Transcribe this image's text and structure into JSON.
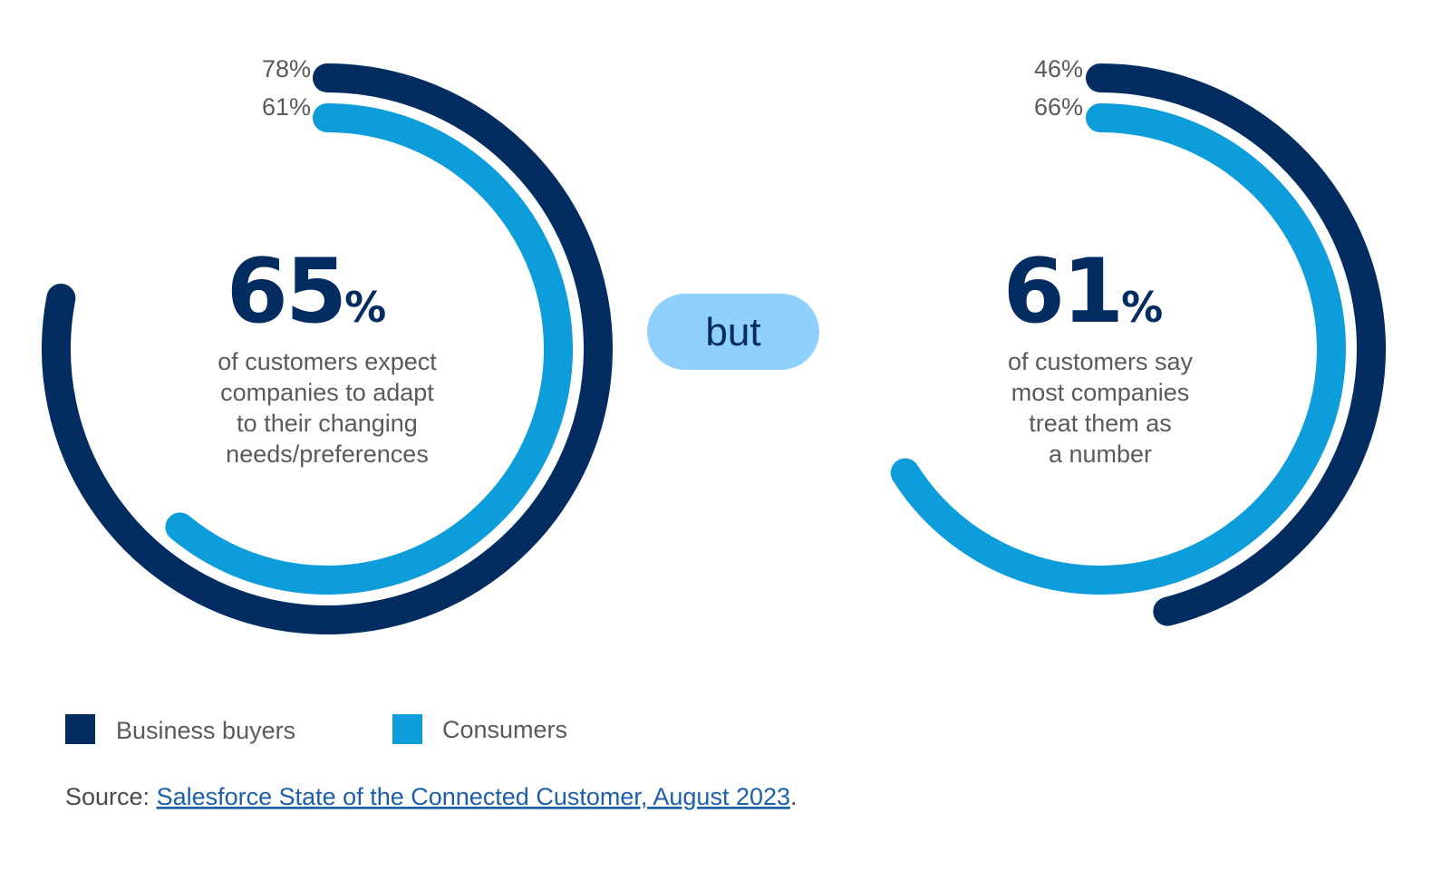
{
  "colors": {
    "business": "#032d60",
    "consumer": "#0d9dda",
    "pill": "#90d0fe",
    "text": "#5a5a5a",
    "link": "#1b5faa"
  },
  "chart_data": [
    {
      "type": "radial-bar",
      "headline_number": "65",
      "headline_unit": "%",
      "caption_lines": [
        "of customers expect",
        "companies to adapt",
        "to their changing",
        "needs/preferences"
      ],
      "series": [
        {
          "name": "Business buyers",
          "value": 78,
          "label": "78%"
        },
        {
          "name": "Consumers",
          "value": 61,
          "label": "61%"
        }
      ],
      "max": 100
    },
    {
      "type": "radial-bar",
      "headline_number": "61",
      "headline_unit": "%",
      "caption_lines": [
        "of customers say",
        "most companies",
        "treat them as",
        "a number"
      ],
      "series": [
        {
          "name": "Business buyers",
          "value": 46,
          "label": "46%"
        },
        {
          "name": "Consumers",
          "value": 66,
          "label": "66%"
        }
      ],
      "max": 100
    }
  ],
  "connector": {
    "label": "but"
  },
  "legend": [
    {
      "label": "Business buyers",
      "color": "#032d60"
    },
    {
      "label": "Consumers",
      "color": "#0d9dda"
    }
  ],
  "source": {
    "prefix": "Source: ",
    "link_text": "Salesforce State of the Connected Customer, August 2023",
    "suffix": "."
  }
}
